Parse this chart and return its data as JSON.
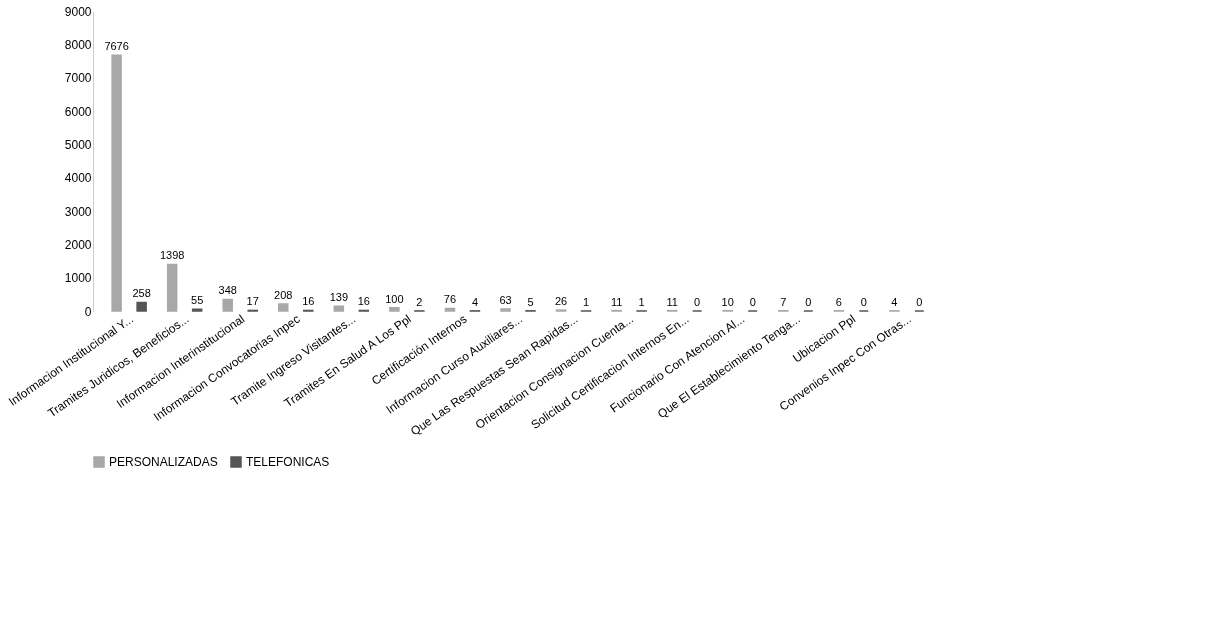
{
  "chart_data": {
    "type": "bar",
    "categories": [
      "Informacion Institucional Y...",
      "Tramites Juridicos, Beneficios...",
      "Informacion Interinstitucional",
      "Informacion Convocatorias Inpec",
      "Tramite Ingreso Visitantes...",
      "Tramites En Salud A Los Ppl",
      "Certificación Internos",
      "Informacion Curso Auxiliares...",
      "Que Las Respuestas Sean Rapidas...",
      "Orientacion Consignacion Cuenta...",
      "Solicitud Certificacion Internos En...",
      "Funcionario Con Atencion Al...",
      "Que El Establecimiento Tenga...",
      "Ubicacion Ppl",
      "Convenios Inpec Con Otras..."
    ],
    "series": [
      {
        "name": "PERSONALIZADAS",
        "color": "#a8a8a8",
        "values": [
          7676,
          1398,
          348,
          208,
          139,
          100,
          76,
          63,
          26,
          11,
          11,
          10,
          7,
          6,
          4
        ]
      },
      {
        "name": "TELEFONICAS",
        "color": "#555555",
        "values": [
          258,
          55,
          17,
          16,
          16,
          2,
          4,
          5,
          1,
          1,
          0,
          0,
          0,
          0,
          0
        ]
      }
    ],
    "ylim": [
      0,
      9000
    ],
    "yticks": [
      0,
      1000,
      2000,
      3000,
      4000,
      5000,
      6000,
      7000,
      8000,
      9000
    ],
    "data_labels": true,
    "grid": false,
    "legend": "bottom"
  }
}
